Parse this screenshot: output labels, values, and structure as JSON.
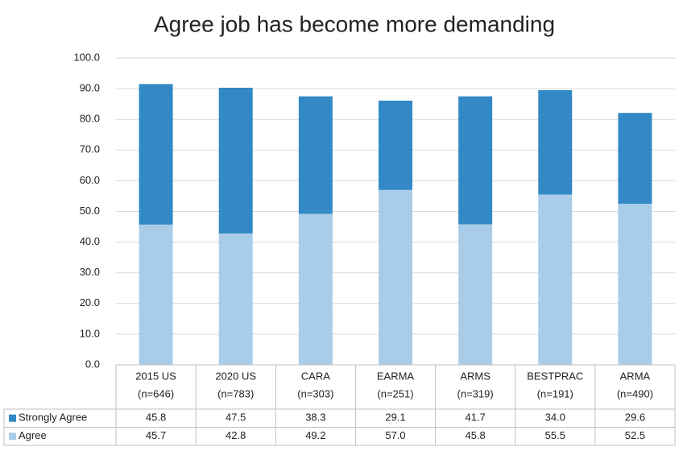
{
  "chart_data": {
    "type": "stacked-bar",
    "title": "Agree job has become more demanding",
    "categories": [
      "2015 US",
      "2020 US",
      "CARA",
      "EARMA",
      "ARMS",
      "BESTPRAC",
      "ARMA"
    ],
    "sample_labels": [
      "(n=646)",
      "(n=783)",
      "(n=303)",
      "(n=251)",
      "(n=319)",
      "(n=191)",
      "(n=490)"
    ],
    "series": [
      {
        "name": "Agree",
        "color": "#a9cde9",
        "values": [
          45.7,
          42.8,
          49.2,
          57.0,
          45.8,
          55.5,
          52.5
        ],
        "value_labels": [
          "45.7",
          "42.8",
          "49.2",
          "57.0",
          "45.8",
          "55.5",
          "52.5"
        ]
      },
      {
        "name": "Strongly Agree",
        "color": "#3289c5",
        "values": [
          45.8,
          47.5,
          38.3,
          29.1,
          41.7,
          34.0,
          29.6
        ],
        "value_labels": [
          "45.8",
          "47.5",
          "38.3",
          "29.1",
          "41.7",
          "34.0",
          "29.6"
        ]
      }
    ],
    "ylim": [
      0,
      100
    ],
    "yticks": [
      {
        "value": 0,
        "label": "0.0"
      },
      {
        "value": 10,
        "label": "10.0"
      },
      {
        "value": 20,
        "label": "20.0"
      },
      {
        "value": 30,
        "label": "30.0"
      },
      {
        "value": 40,
        "label": "40.0"
      },
      {
        "value": 50,
        "label": "50.0"
      },
      {
        "value": 60,
        "label": "60.0"
      },
      {
        "value": 70,
        "label": "70.0"
      },
      {
        "value": 80,
        "label": "80.0"
      },
      {
        "value": 90,
        "label": "90.0"
      },
      {
        "value": 100,
        "label": "100.0"
      }
    ],
    "grid": true
  }
}
